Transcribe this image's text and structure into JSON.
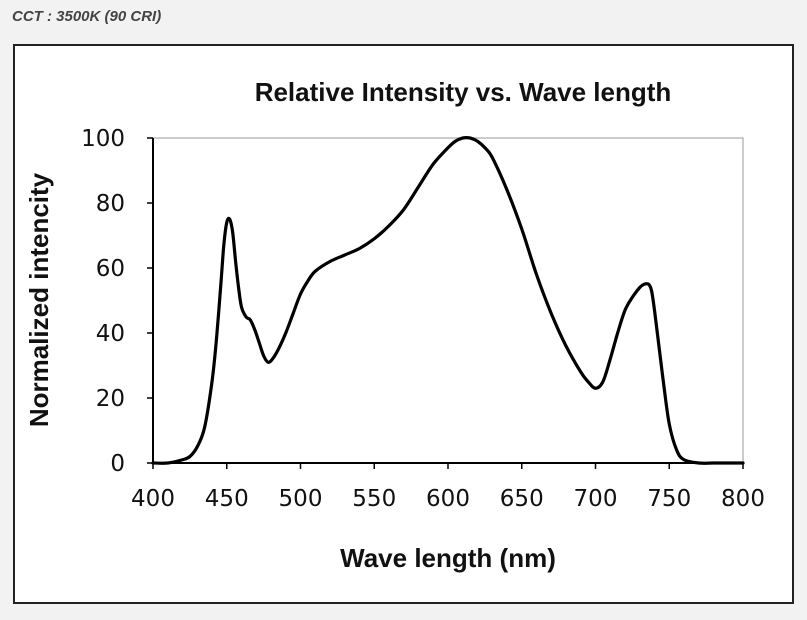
{
  "caption": "CCT : 3500K (90 CRI)",
  "colors": {
    "background": "#f2f2f2",
    "frame": "#222222",
    "line": "#000000",
    "caption": "#444444"
  },
  "chart_data": {
    "type": "line",
    "title": "Relative Intensity vs. Wave length",
    "xlabel": "Wave length (nm)",
    "ylabel": "Normalized intencity",
    "xlim": [
      400,
      800
    ],
    "ylim": [
      0,
      100
    ],
    "xticks": [
      400,
      450,
      500,
      550,
      600,
      650,
      700,
      750,
      800
    ],
    "yticks": [
      0,
      20,
      40,
      60,
      80,
      100
    ],
    "grid": false,
    "series": [
      {
        "name": "Relative Intensity",
        "x": [
          400,
          410,
          420,
          425,
          430,
          435,
          440,
          443,
          446,
          448,
          450,
          452,
          454,
          456,
          458,
          460,
          463,
          466,
          469,
          472,
          475,
          478,
          481,
          485,
          490,
          495,
          500,
          505,
          510,
          520,
          530,
          540,
          550,
          560,
          570,
          580,
          590,
          600,
          605,
          610,
          615,
          620,
          625,
          630,
          640,
          650,
          660,
          670,
          680,
          690,
          695,
          700,
          705,
          710,
          715,
          720,
          725,
          730,
          733,
          736,
          738,
          740,
          743,
          746,
          750,
          755,
          760,
          770,
          780,
          790,
          800
        ],
        "y": [
          0,
          0,
          1,
          2,
          5,
          11,
          25,
          38,
          55,
          67,
          74,
          75,
          71,
          62,
          54,
          48,
          45,
          44,
          41,
          37,
          33,
          31,
          32,
          35,
          40,
          46,
          52,
          56,
          59,
          62,
          64,
          66,
          69,
          73,
          78,
          85,
          92,
          97,
          99,
          100,
          100,
          99,
          97,
          94,
          84,
          72,
          58,
          46,
          36,
          28,
          25,
          23,
          25,
          32,
          40,
          47,
          51,
          54,
          55,
          55,
          53,
          47,
          36,
          25,
          12,
          4,
          1,
          0,
          0,
          0,
          0
        ]
      }
    ]
  }
}
